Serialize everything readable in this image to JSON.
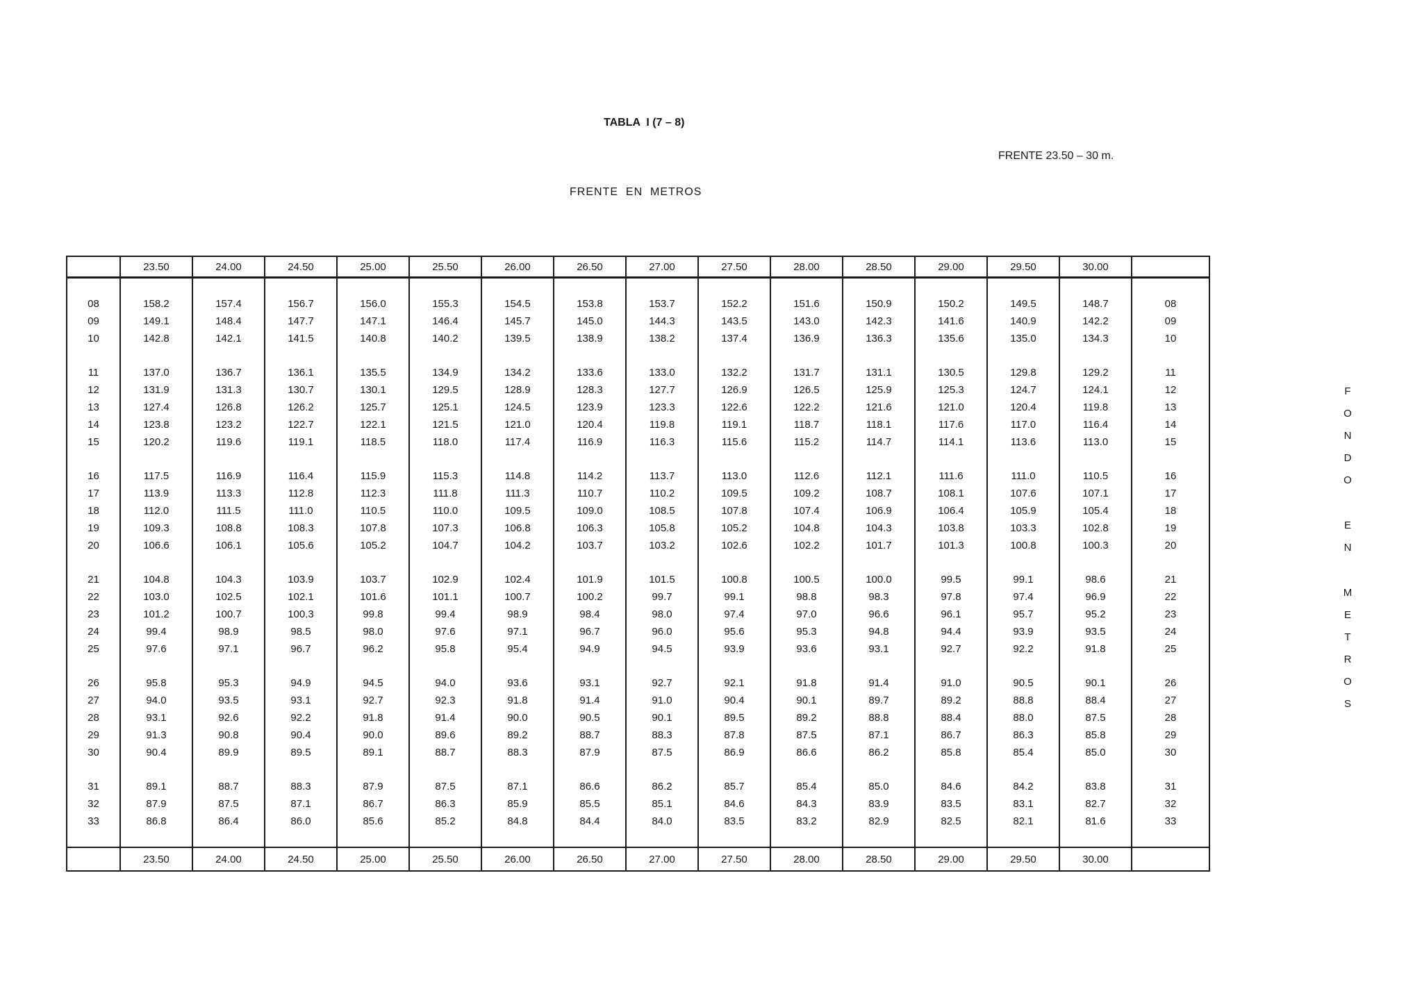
{
  "page_title": "TABLA  I (7 – 8)",
  "frente_range_label": "FRENTE 23.50 – 30 m.",
  "top_axis_label": "FRENTE  EN  METROS",
  "right_axis": {
    "label": "FONDO EN METROS",
    "letters": [
      "F",
      "O",
      "N",
      "D",
      "O",
      " ",
      "E",
      "N",
      " ",
      "M",
      "E",
      "T",
      "R",
      "O",
      "S"
    ]
  },
  "table": {
    "column_headers": [
      "23.50",
      "24.00",
      "24.50",
      "25.00",
      "25.50",
      "26.00",
      "26.50",
      "27.00",
      "27.50",
      "28.00",
      "28.50",
      "29.00",
      "29.50",
      "30.00"
    ],
    "row_groups": [
      {
        "rows": [
          {
            "label": "08",
            "values": [
              "158.2",
              "157.4",
              "156.7",
              "156.0",
              "155.3",
              "154.5",
              "153.8",
              "153.7",
              "152.2",
              "151.6",
              "150.9",
              "150.2",
              "149.5",
              "148.7"
            ]
          },
          {
            "label": "09",
            "values": [
              "149.1",
              "148.4",
              "147.7",
              "147.1",
              "146.4",
              "145.7",
              "145.0",
              "144.3",
              "143.5",
              "143.0",
              "142.3",
              "141.6",
              "140.9",
              "142.2"
            ]
          },
          {
            "label": "10",
            "values": [
              "142.8",
              "142.1",
              "141.5",
              "140.8",
              "140.2",
              "139.5",
              "138.9",
              "138.2",
              "137.4",
              "136.9",
              "136.3",
              "135.6",
              "135.0",
              "134.3"
            ]
          }
        ]
      },
      {
        "rows": [
          {
            "label": "11",
            "values": [
              "137.0",
              "136.7",
              "136.1",
              "135.5",
              "134.9",
              "134.2",
              "133.6",
              "133.0",
              "132.2",
              "131.7",
              "131.1",
              "130.5",
              "129.8",
              "129.2"
            ]
          },
          {
            "label": "12",
            "values": [
              "131.9",
              "131.3",
              "130.7",
              "130.1",
              "129.5",
              "128.9",
              "128.3",
              "127.7",
              "126.9",
              "126.5",
              "125.9",
              "125.3",
              "124.7",
              "124.1"
            ]
          },
          {
            "label": "13",
            "values": [
              "127.4",
              "126.8",
              "126.2",
              "125.7",
              "125.1",
              "124.5",
              "123.9",
              "123.3",
              "122.6",
              "122.2",
              "121.6",
              "121.0",
              "120.4",
              "119.8"
            ]
          },
          {
            "label": "14",
            "values": [
              "123.8",
              "123.2",
              "122.7",
              "122.1",
              "121.5",
              "121.0",
              "120.4",
              "119.8",
              "119.1",
              "118.7",
              "118.1",
              "117.6",
              "117.0",
              "116.4"
            ]
          },
          {
            "label": "15",
            "values": [
              "120.2",
              "119.6",
              "119.1",
              "118.5",
              "118.0",
              "117.4",
              "116.9",
              "116.3",
              "115.6",
              "115.2",
              "114.7",
              "114.1",
              "113.6",
              "113.0"
            ]
          }
        ]
      },
      {
        "rows": [
          {
            "label": "16",
            "values": [
              "117.5",
              "116.9",
              "116.4",
              "115.9",
              "115.3",
              "114.8",
              "114.2",
              "113.7",
              "113.0",
              "112.6",
              "112.1",
              "111.6",
              "111.0",
              "110.5"
            ]
          },
          {
            "label": "17",
            "values": [
              "113.9",
              "113.3",
              "112.8",
              "112.3",
              "111.8",
              "111.3",
              "110.7",
              "110.2",
              "109.5",
              "109.2",
              "108.7",
              "108.1",
              "107.6",
              "107.1"
            ]
          },
          {
            "label": "18",
            "values": [
              "112.0",
              "111.5",
              "111.0",
              "110.5",
              "110.0",
              "109.5",
              "109.0",
              "108.5",
              "107.8",
              "107.4",
              "106.9",
              "106.4",
              "105.9",
              "105.4"
            ]
          },
          {
            "label": "19",
            "values": [
              "109.3",
              "108.8",
              "108.3",
              "107.8",
              "107.3",
              "106.8",
              "106.3",
              "105.8",
              "105.2",
              "104.8",
              "104.3",
              "103.8",
              "103.3",
              "102.8"
            ]
          },
          {
            "label": "20",
            "values": [
              "106.6",
              "106.1",
              "105.6",
              "105.2",
              "104.7",
              "104.2",
              "103.7",
              "103.2",
              "102.6",
              "102.2",
              "101.7",
              "101.3",
              "100.8",
              "100.3"
            ]
          }
        ]
      },
      {
        "rows": [
          {
            "label": "21",
            "values": [
              "104.8",
              "104.3",
              "103.9",
              "103.7",
              "102.9",
              "102.4",
              "101.9",
              "101.5",
              "100.8",
              "100.5",
              "100.0",
              "99.5",
              "99.1",
              "98.6"
            ]
          },
          {
            "label": "22",
            "values": [
              "103.0",
              "102.5",
              "102.1",
              "101.6",
              "101.1",
              "100.7",
              "100.2",
              "99.7",
              "99.1",
              "98.8",
              "98.3",
              "97.8",
              "97.4",
              "96.9"
            ]
          },
          {
            "label": "23",
            "values": [
              "101.2",
              "100.7",
              "100.3",
              "99.8",
              "99.4",
              "98.9",
              "98.4",
              "98.0",
              "97.4",
              "97.0",
              "96.6",
              "96.1",
              "95.7",
              "95.2"
            ]
          },
          {
            "label": "24",
            "values": [
              "99.4",
              "98.9",
              "98.5",
              "98.0",
              "97.6",
              "97.1",
              "96.7",
              "96.0",
              "95.6",
              "95.3",
              "94.8",
              "94.4",
              "93.9",
              "93.5"
            ]
          },
          {
            "label": "25",
            "values": [
              "97.6",
              "97.1",
              "96.7",
              "96.2",
              "95.8",
              "95.4",
              "94.9",
              "94.5",
              "93.9",
              "93.6",
              "93.1",
              "92.7",
              "92.2",
              "91.8"
            ]
          }
        ]
      },
      {
        "rows": [
          {
            "label": "26",
            "values": [
              "95.8",
              "95.3",
              "94.9",
              "94.5",
              "94.0",
              "93.6",
              "93.1",
              "92.7",
              "92.1",
              "91.8",
              "91.4",
              "91.0",
              "90.5",
              "90.1"
            ]
          },
          {
            "label": "27",
            "values": [
              "94.0",
              "93.5",
              "93.1",
              "92.7",
              "92.3",
              "91.8",
              "91.4",
              "91.0",
              "90.4",
              "90.1",
              "89.7",
              "89.2",
              "88.8",
              "88.4"
            ]
          },
          {
            "label": "28",
            "values": [
              "93.1",
              "92.6",
              "92.2",
              "91.8",
              "91.4",
              "90.0",
              "90.5",
              "90.1",
              "89.5",
              "89.2",
              "88.8",
              "88.4",
              "88.0",
              "87.5"
            ]
          },
          {
            "label": "29",
            "values": [
              "91.3",
              "90.8",
              "90.4",
              "90.0",
              "89.6",
              "89.2",
              "88.7",
              "88.3",
              "87.8",
              "87.5",
              "87.1",
              "86.7",
              "86.3",
              "85.8"
            ]
          },
          {
            "label": "30",
            "values": [
              "90.4",
              "89.9",
              "89.5",
              "89.1",
              "88.7",
              "88.3",
              "87.9",
              "87.5",
              "86.9",
              "86.6",
              "86.2",
              "85.8",
              "85.4",
              "85.0"
            ]
          }
        ]
      },
      {
        "rows": [
          {
            "label": "31",
            "values": [
              "89.1",
              "88.7",
              "88.3",
              "87.9",
              "87.5",
              "87.1",
              "86.6",
              "86.2",
              "85.7",
              "85.4",
              "85.0",
              "84.6",
              "84.2",
              "83.8"
            ]
          },
          {
            "label": "32",
            "values": [
              "87.9",
              "87.5",
              "87.1",
              "86.7",
              "86.3",
              "85.9",
              "85.5",
              "85.1",
              "84.6",
              "84.3",
              "83.9",
              "83.5",
              "83.1",
              "82.7"
            ]
          },
          {
            "label": "33",
            "values": [
              "86.8",
              "86.4",
              "86.0",
              "85.6",
              "85.2",
              "84.8",
              "84.4",
              "84.0",
              "83.5",
              "83.2",
              "82.9",
              "82.5",
              "82.1",
              "81.6"
            ]
          }
        ]
      }
    ]
  }
}
